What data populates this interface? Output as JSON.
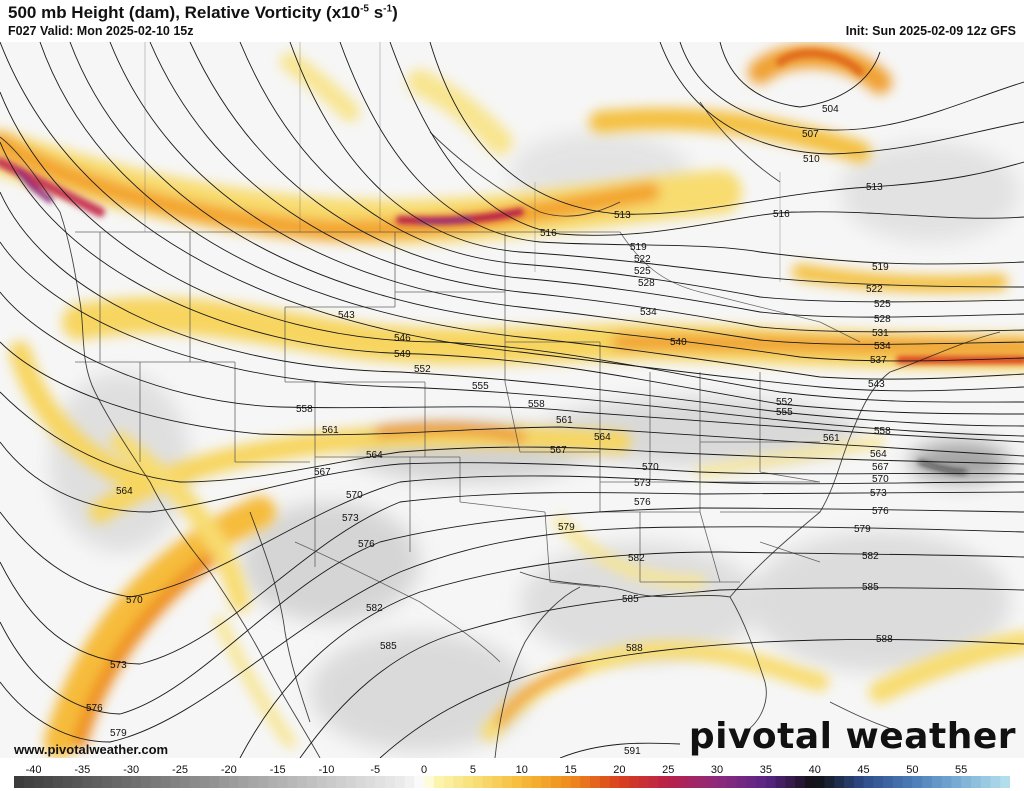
{
  "header": {
    "title": "500 mb Height (dam), Relative Vorticity (x10",
    "title_exp": "-5",
    "title_unit": " s",
    "title_unit_exp": "-1",
    "title_close": ")",
    "valid": "F027 Valid: Mon 2025-02-10 15z",
    "init": "Init: Sun 2025-02-09 12z GFS"
  },
  "footer": {
    "website": "www.pivotalweather.com",
    "brand": "pivotal weather"
  },
  "colorbar": {
    "ticks": [
      "-40",
      "-35",
      "-30",
      "-25",
      "-20",
      "-15",
      "-10",
      "-5",
      "0",
      "5",
      "10",
      "15",
      "20",
      "25",
      "30",
      "35",
      "40",
      "45",
      "50",
      "55"
    ],
    "tick_values": [
      -40,
      -35,
      -30,
      -25,
      -20,
      -15,
      -10,
      -5,
      0,
      5,
      10,
      15,
      20,
      25,
      30,
      35,
      40,
      45,
      50,
      55
    ],
    "min": -42,
    "max": 60,
    "stops": [
      {
        "v": -42,
        "c": "#3a3a3a"
      },
      {
        "v": -30,
        "c": "#6e6e6e"
      },
      {
        "v": -20,
        "c": "#9a9a9a"
      },
      {
        "v": -10,
        "c": "#c8c8c8"
      },
      {
        "v": -2,
        "c": "#ececec"
      },
      {
        "v": 0,
        "c": "#ffffff"
      },
      {
        "v": 1,
        "c": "#fdf6b4"
      },
      {
        "v": 5,
        "c": "#f8e07a"
      },
      {
        "v": 10,
        "c": "#f6bb3a"
      },
      {
        "v": 15,
        "c": "#ee8a1c"
      },
      {
        "v": 20,
        "c": "#d9401e"
      },
      {
        "v": 25,
        "c": "#b8204a"
      },
      {
        "v": 30,
        "c": "#8e2a7c"
      },
      {
        "v": 35,
        "c": "#5a2486"
      },
      {
        "v": 40,
        "c": "#101010"
      },
      {
        "v": 45,
        "c": "#2e4c8a"
      },
      {
        "v": 50,
        "c": "#4c7cb8"
      },
      {
        "v": 55,
        "c": "#7cb0d6"
      },
      {
        "v": 60,
        "c": "#b8e2ee"
      }
    ]
  },
  "contour_labels": {
    "l504": "504",
    "l507": "507",
    "l510": "510",
    "l513": "513",
    "l513b": "513",
    "l516": "516",
    "l516b": "516",
    "l519": "519",
    "l519b": "519",
    "l522": "522",
    "l522b": "522",
    "l525": "525",
    "l525b": "525",
    "l528": "528",
    "l528b": "528",
    "l531": "531",
    "l534": "534",
    "l534b": "534",
    "l537": "537",
    "l540": "540",
    "l543": "543",
    "l543b": "543",
    "l546": "546",
    "l549": "549",
    "l552": "552",
    "l552b": "552",
    "l555": "555",
    "l555b": "555",
    "l558": "558",
    "l558b": "558",
    "l558c": "558",
    "l561": "561",
    "l561b": "561",
    "l561c": "561",
    "l564": "564",
    "l564b": "564",
    "l564c": "564",
    "l564d": "564",
    "l567": "567",
    "l567b": "567",
    "l567c": "567",
    "l570": "570",
    "l570b": "570",
    "l570c": "570",
    "l570d": "570",
    "l573": "573",
    "l573b": "573",
    "l573c": "573",
    "l573d": "573",
    "l576": "576",
    "l576b": "576",
    "l576c": "576",
    "l576d": "576",
    "l579": "579",
    "l579b": "579",
    "l579c": "579",
    "l582": "582",
    "l582b": "582",
    "l582c": "582",
    "l585": "585",
    "l585b": "585",
    "l585c": "585",
    "l588": "588",
    "l588b": "588",
    "l591": "591"
  }
}
